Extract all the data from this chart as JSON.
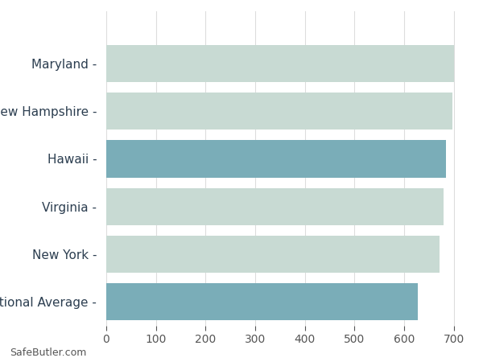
{
  "categories": [
    "National Average",
    "New York",
    "Virginia",
    "Hawaii",
    "New Hampshire",
    "Maryland"
  ],
  "values": [
    628,
    672,
    680,
    684,
    698,
    700
  ],
  "bar_colors": [
    "#7AADB8",
    "#C8DAD3",
    "#C8DAD3",
    "#7AADB8",
    "#C8DAD3",
    "#C8DAD3"
  ],
  "xlim": [
    0,
    730
  ],
  "xticks": [
    0,
    100,
    200,
    300,
    400,
    500,
    600,
    700
  ],
  "background_color": "#FFFFFF",
  "bar_height": 0.78,
  "grid_color": "#DDDDDD",
  "label_color": "#2C3E50",
  "tick_color": "#555555",
  "watermark": "SafeButler.com",
  "label_fontsize": 11,
  "tick_fontsize": 10
}
